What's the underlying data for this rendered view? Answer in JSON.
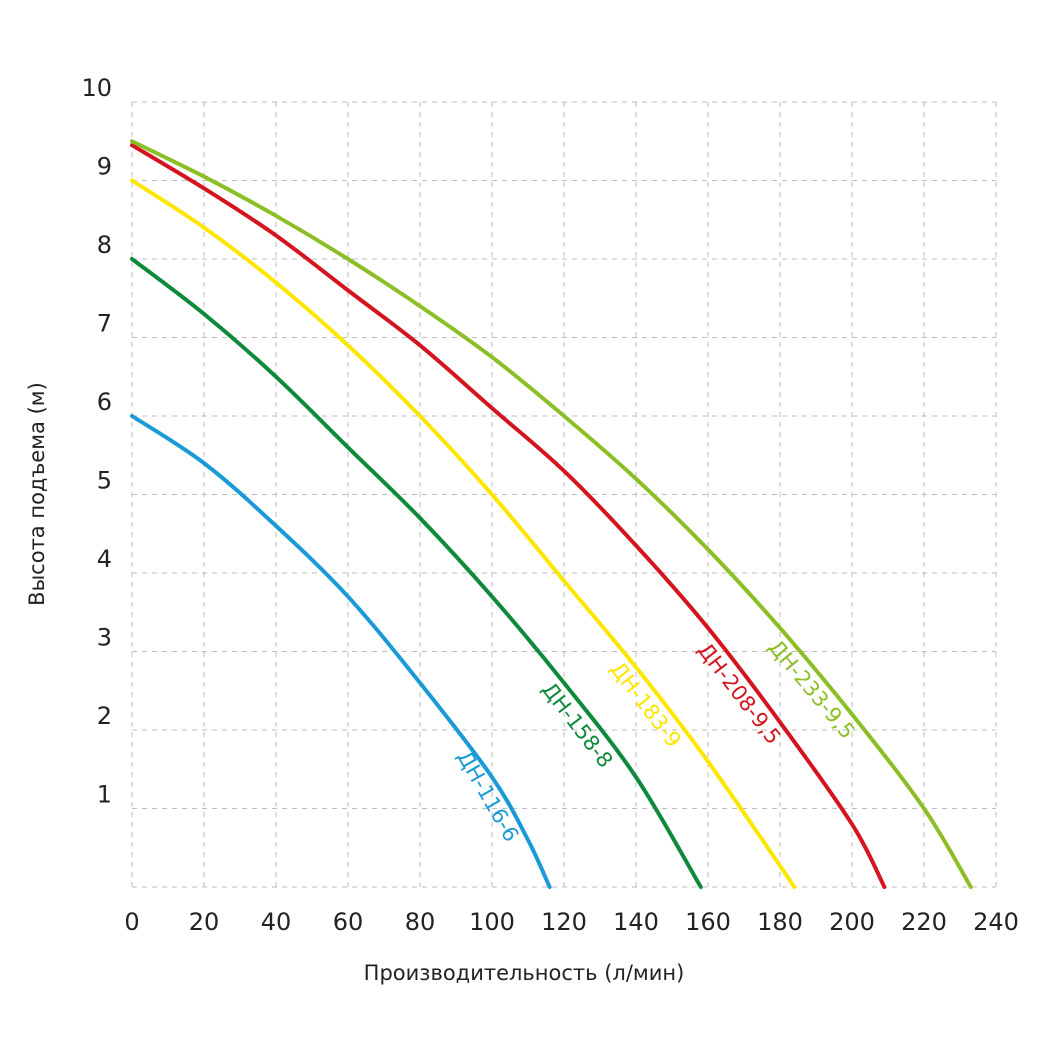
{
  "chart_data": {
    "type": "line",
    "title": "",
    "xlabel": "Производительность (л/мин)",
    "ylabel": "Высота подъема (м)",
    "xlim": [
      0,
      240
    ],
    "ylim": [
      0,
      10
    ],
    "x_ticks": [
      "0",
      "20",
      "40",
      "60",
      "80",
      "100",
      "120",
      "140",
      "160",
      "180",
      "200",
      "220",
      "240"
    ],
    "y_ticks": [
      "1",
      "2",
      "3",
      "4",
      "5",
      "6",
      "7",
      "8",
      "9",
      "10"
    ],
    "grid": true,
    "legend": "inline-labels",
    "series": [
      {
        "name": "ДН-116-6",
        "color": "#1a9ad6",
        "x": [
          0,
          20,
          40,
          60,
          80,
          100,
          110,
          116
        ],
        "y": [
          6.0,
          5.4,
          4.6,
          3.7,
          2.6,
          1.4,
          0.6,
          0
        ]
      },
      {
        "name": "ДН-158-8",
        "color": "#0f8a3c",
        "x": [
          0,
          20,
          40,
          60,
          80,
          100,
          120,
          140,
          158
        ],
        "y": [
          8.0,
          7.3,
          6.5,
          5.6,
          4.7,
          3.7,
          2.6,
          1.4,
          0
        ]
      },
      {
        "name": "ДН-183-9",
        "color": "#ffe600",
        "x": [
          0,
          20,
          40,
          60,
          80,
          100,
          120,
          140,
          160,
          184
        ],
        "y": [
          9.0,
          8.4,
          7.7,
          6.9,
          6.0,
          5.0,
          3.9,
          2.8,
          1.6,
          0
        ]
      },
      {
        "name": "ДН-208-9,5",
        "color": "#d4141e",
        "x": [
          0,
          20,
          40,
          60,
          80,
          100,
          120,
          140,
          160,
          180,
          200,
          209
        ],
        "y": [
          9.45,
          8.9,
          8.3,
          7.6,
          6.9,
          6.1,
          5.3,
          4.35,
          3.3,
          2.1,
          0.8,
          0
        ]
      },
      {
        "name": "ДН-233-9,5",
        "color": "#8cbf26",
        "x": [
          0,
          20,
          40,
          60,
          80,
          100,
          120,
          140,
          160,
          180,
          200,
          220,
          233
        ],
        "y": [
          9.5,
          9.05,
          8.55,
          8.0,
          7.4,
          6.75,
          6.0,
          5.2,
          4.3,
          3.3,
          2.2,
          1.0,
          0
        ]
      }
    ]
  }
}
